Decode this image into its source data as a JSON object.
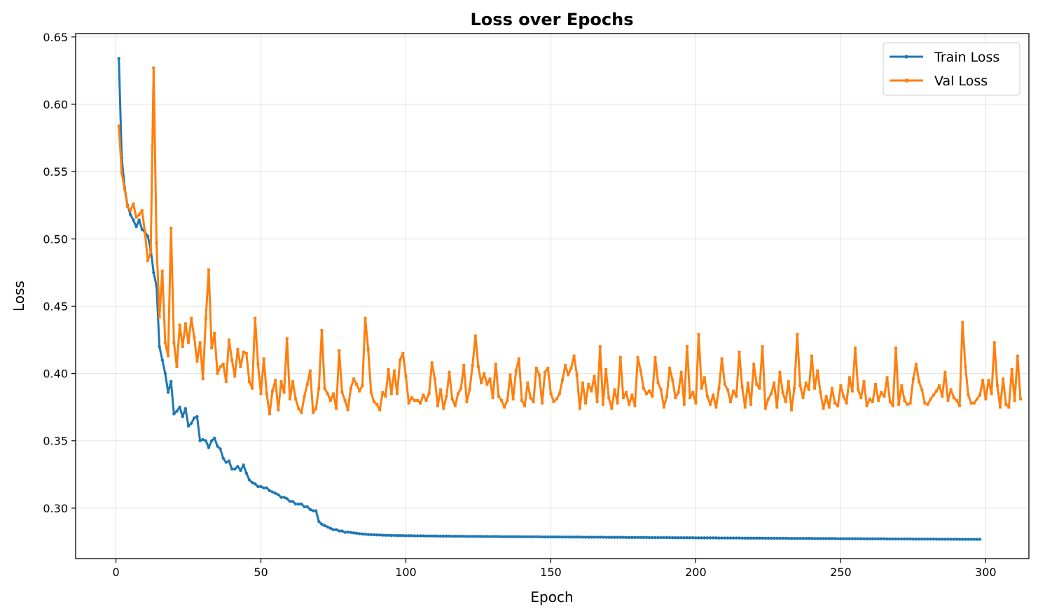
{
  "chart_data": {
    "type": "line",
    "title": "Loss over Epochs",
    "xlabel": "Epoch",
    "ylabel": "Loss",
    "xlim": [
      -13.9,
      314.9
    ],
    "ylim": [
      0.2625,
      0.6525
    ],
    "xticks": [
      0,
      50,
      100,
      150,
      200,
      250,
      300
    ],
    "yticks": [
      0.3,
      0.35,
      0.4,
      0.45,
      0.5,
      0.55,
      0.6,
      0.65
    ],
    "grid": true,
    "legend_position": "top-right",
    "x": {
      "start": 1,
      "end": 300,
      "step": 1
    },
    "series": [
      {
        "name": "Train Loss",
        "color": "#1f77b4",
        "marker": "circle",
        "values": [
          0.634,
          0.56,
          0.538,
          0.525,
          0.518,
          0.514,
          0.509,
          0.514,
          0.507,
          0.505,
          0.502,
          0.492,
          0.475,
          0.465,
          0.42,
          0.41,
          0.4,
          0.386,
          0.394,
          0.37,
          0.372,
          0.375,
          0.368,
          0.374,
          0.361,
          0.363,
          0.367,
          0.368,
          0.35,
          0.351,
          0.35,
          0.345,
          0.35,
          0.352,
          0.346,
          0.344,
          0.337,
          0.334,
          0.335,
          0.329,
          0.329,
          0.331,
          0.328,
          0.332,
          0.326,
          0.321,
          0.319,
          0.318,
          0.316,
          0.316,
          0.315,
          0.315,
          0.313,
          0.312,
          0.311,
          0.31,
          0.308,
          0.308,
          0.307,
          0.305,
          0.305,
          0.303,
          0.303,
          0.303,
          0.301,
          0.301,
          0.299,
          0.298,
          0.298,
          0.29,
          0.288,
          0.287,
          0.286,
          0.285,
          0.284,
          0.284,
          0.283,
          0.283,
          0.282,
          0.2822,
          0.2819,
          0.2816,
          0.2813,
          0.281,
          0.2808,
          0.2806,
          0.2804,
          0.2803,
          0.2802,
          0.2801,
          0.28,
          0.2799,
          0.2798,
          0.2798,
          0.2797,
          0.2797,
          0.2796,
          0.2796,
          0.2796,
          0.2795,
          0.2795,
          0.2795,
          0.2794,
          0.2794,
          0.2794,
          0.2794,
          0.2793,
          0.2793,
          0.2793,
          0.2793,
          0.2792,
          0.2792,
          0.2792,
          0.2792,
          0.2792,
          0.2791,
          0.2791,
          0.2791,
          0.2791,
          0.2791,
          0.279,
          0.279,
          0.279,
          0.279,
          0.279,
          0.279,
          0.2789,
          0.2789,
          0.2789,
          0.2789,
          0.2789,
          0.2789,
          0.2788,
          0.2788,
          0.2788,
          0.2788,
          0.2788,
          0.2788,
          0.2788,
          0.2787,
          0.2787,
          0.2787,
          0.2787,
          0.2787,
          0.2787,
          0.2787,
          0.2786,
          0.2786,
          0.2786,
          0.2786,
          0.2786,
          0.2786,
          0.2786,
          0.2785,
          0.2785,
          0.2785,
          0.2785,
          0.2785,
          0.2785,
          0.2785,
          0.2784,
          0.2784,
          0.2784,
          0.2784,
          0.2784,
          0.2784,
          0.2784,
          0.2784,
          0.2783,
          0.2783,
          0.2783,
          0.2783,
          0.2783,
          0.2783,
          0.2783,
          0.2782,
          0.2782,
          0.2782,
          0.2782,
          0.2782,
          0.2782,
          0.2782,
          0.2782,
          0.2781,
          0.2781,
          0.2781,
          0.2781,
          0.2781,
          0.2781,
          0.2781,
          0.2781,
          0.278,
          0.278,
          0.278,
          0.278,
          0.278,
          0.278,
          0.278,
          0.278,
          0.2779,
          0.2779,
          0.2779,
          0.2779,
          0.2779,
          0.2779,
          0.2779,
          0.2779,
          0.2778,
          0.2778,
          0.2778,
          0.2778,
          0.2778,
          0.2778,
          0.2778,
          0.2778,
          0.2777,
          0.2777,
          0.2777,
          0.2777,
          0.2777,
          0.2777,
          0.2777,
          0.2777,
          0.2776,
          0.2776,
          0.2776,
          0.2776,
          0.2776,
          0.2776,
          0.2776,
          0.2776,
          0.2775,
          0.2775,
          0.2775,
          0.2775,
          0.2775,
          0.2775,
          0.2775,
          0.2775,
          0.2775,
          0.2774,
          0.2774,
          0.2774,
          0.2774,
          0.2774,
          0.2774,
          0.2774,
          0.2774,
          0.2773,
          0.2773,
          0.2773,
          0.2773,
          0.2773,
          0.2773,
          0.2773,
          0.2773,
          0.2773,
          0.2772,
          0.2772,
          0.2772,
          0.2772,
          0.2772,
          0.2772,
          0.2772,
          0.2772,
          0.2771,
          0.2771,
          0.2771,
          0.2771,
          0.2771,
          0.2771,
          0.2771,
          0.2771,
          0.2771,
          0.277,
          0.277,
          0.277,
          0.277,
          0.277,
          0.277,
          0.277,
          0.277,
          0.2769,
          0.2769,
          0.2769,
          0.2769,
          0.2769,
          0.2769,
          0.2769,
          0.2769,
          0.2768,
          0.2768,
          0.2768,
          0.2768,
          0.2768,
          0.2768,
          0.2768,
          0.2768
        ]
      },
      {
        "name": "Val Loss",
        "color": "#ff7f0e",
        "marker": "square",
        "values": [
          0.584,
          0.549,
          0.537,
          0.524,
          0.521,
          0.526,
          0.516,
          0.518,
          0.521,
          0.505,
          0.484,
          0.49,
          0.627,
          0.497,
          0.442,
          0.476,
          0.423,
          0.413,
          0.508,
          0.423,
          0.405,
          0.436,
          0.42,
          0.437,
          0.423,
          0.441,
          0.427,
          0.409,
          0.423,
          0.396,
          0.441,
          0.477,
          0.419,
          0.43,
          0.4,
          0.405,
          0.407,
          0.394,
          0.425,
          0.41,
          0.398,
          0.418,
          0.405,
          0.416,
          0.415,
          0.394,
          0.389,
          0.441,
          0.407,
          0.385,
          0.411,
          0.385,
          0.37,
          0.387,
          0.395,
          0.373,
          0.394,
          0.386,
          0.426,
          0.381,
          0.394,
          0.381,
          0.374,
          0.371,
          0.383,
          0.392,
          0.402,
          0.371,
          0.374,
          0.389,
          0.432,
          0.389,
          0.385,
          0.38,
          0.385,
          0.374,
          0.417,
          0.386,
          0.38,
          0.373,
          0.389,
          0.396,
          0.392,
          0.387,
          0.391,
          0.441,
          0.418,
          0.386,
          0.379,
          0.377,
          0.373,
          0.386,
          0.383,
          0.403,
          0.385,
          0.402,
          0.385,
          0.41,
          0.415,
          0.398,
          0.378,
          0.382,
          0.38,
          0.38,
          0.378,
          0.384,
          0.38,
          0.385,
          0.408,
          0.396,
          0.376,
          0.388,
          0.374,
          0.383,
          0.401,
          0.381,
          0.376,
          0.385,
          0.389,
          0.406,
          0.379,
          0.388,
          0.406,
          0.428,
          0.405,
          0.393,
          0.4,
          0.392,
          0.396,
          0.382,
          0.407,
          0.383,
          0.38,
          0.375,
          0.38,
          0.399,
          0.381,
          0.402,
          0.411,
          0.38,
          0.376,
          0.393,
          0.382,
          0.379,
          0.404,
          0.399,
          0.378,
          0.401,
          0.404,
          0.385,
          0.379,
          0.381,
          0.385,
          0.395,
          0.406,
          0.399,
          0.404,
          0.413,
          0.399,
          0.374,
          0.393,
          0.378,
          0.392,
          0.387,
          0.398,
          0.379,
          0.42,
          0.377,
          0.403,
          0.382,
          0.374,
          0.388,
          0.378,
          0.412,
          0.382,
          0.386,
          0.377,
          0.384,
          0.376,
          0.412,
          0.402,
          0.389,
          0.385,
          0.387,
          0.383,
          0.412,
          0.393,
          0.388,
          0.375,
          0.383,
          0.404,
          0.395,
          0.382,
          0.386,
          0.401,
          0.377,
          0.42,
          0.382,
          0.386,
          0.378,
          0.429,
          0.389,
          0.397,
          0.383,
          0.377,
          0.384,
          0.375,
          0.389,
          0.411,
          0.392,
          0.388,
          0.379,
          0.387,
          0.383,
          0.416,
          0.39,
          0.375,
          0.393,
          0.377,
          0.407,
          0.392,
          0.389,
          0.42,
          0.374,
          0.381,
          0.385,
          0.393,
          0.375,
          0.401,
          0.386,
          0.379,
          0.394,
          0.373,
          0.389,
          0.429,
          0.391,
          0.382,
          0.393,
          0.388,
          0.413,
          0.389,
          0.402,
          0.386,
          0.374,
          0.383,
          0.375,
          0.389,
          0.378,
          0.376,
          0.391,
          0.383,
          0.378,
          0.397,
          0.387,
          0.419,
          0.388,
          0.382,
          0.394,
          0.376,
          0.381,
          0.379,
          0.392,
          0.38,
          0.386,
          0.383,
          0.397,
          0.379,
          0.376,
          0.419,
          0.377,
          0.391,
          0.38,
          0.377,
          0.378,
          0.396,
          0.407,
          0.394,
          0.388,
          0.378,
          0.377,
          0.381,
          0.384,
          0.387,
          0.391,
          0.383,
          0.401,
          0.38,
          0.388,
          0.382,
          0.38,
          0.376,
          0.438,
          0.405,
          0.384,
          0.378,
          0.378,
          0.381,
          0.384,
          0.395,
          0.381,
          0.395,
          0.385,
          0.423,
          0.391,
          0.375,
          0.396,
          0.377,
          0.375,
          0.403,
          0.38,
          0.413,
          0.381
        ]
      }
    ]
  }
}
